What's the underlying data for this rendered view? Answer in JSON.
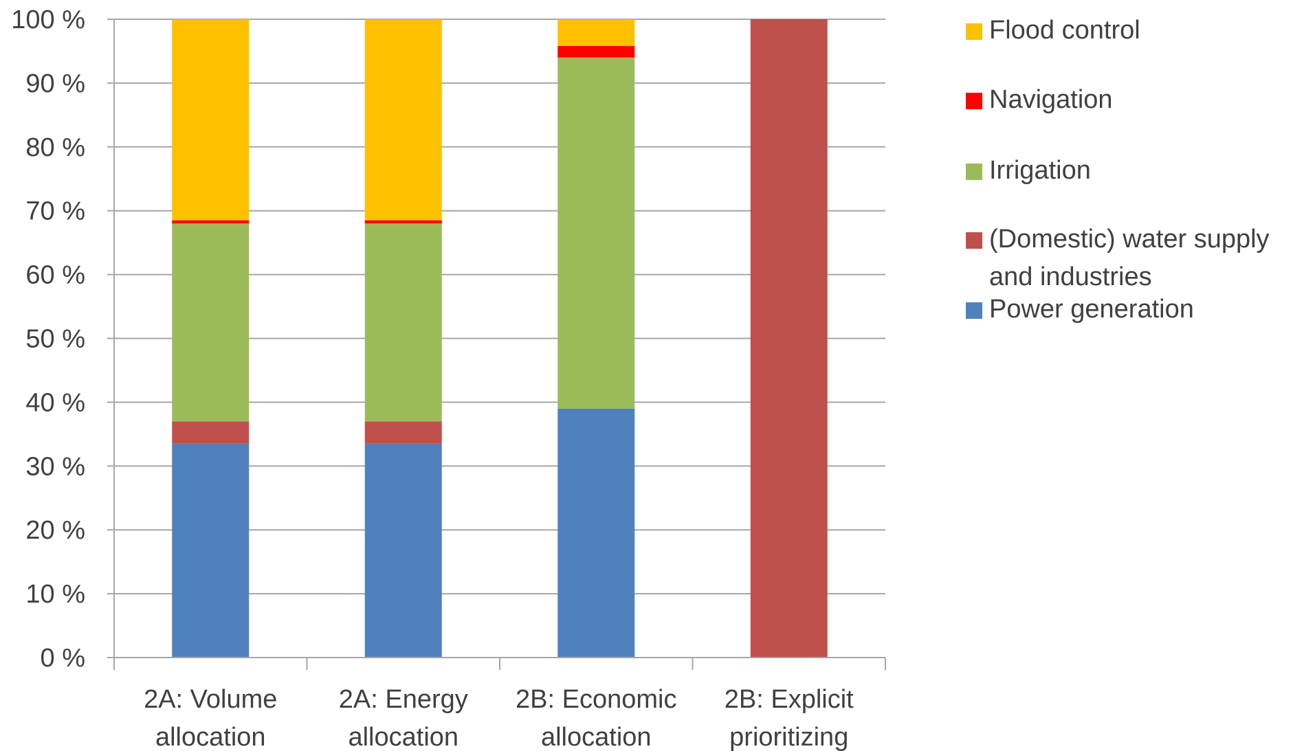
{
  "chart_data": {
    "type": "bar",
    "stacked": true,
    "orientation": "vertical",
    "title": "",
    "xlabel": "",
    "ylabel": "",
    "ylim": [
      0,
      100
    ],
    "yticks": [
      "0 %",
      "10 %",
      "20 %",
      "30 %",
      "40 %",
      "50 %",
      "60 %",
      "70 %",
      "80 %",
      "90 %",
      "100 %"
    ],
    "grid": true,
    "legend_position": "right",
    "categories": [
      [
        "2A: Volume",
        "allocation"
      ],
      [
        "2A: Energy",
        "allocation"
      ],
      [
        "2B: Economic",
        "allocation"
      ],
      [
        "2B: Explicit",
        "prioritizing"
      ]
    ],
    "series": [
      {
        "name": "Power generation",
        "color": "#4F81BD",
        "values": [
          33.5,
          33.5,
          39,
          0
        ]
      },
      {
        "name": "(Domestic) water supply and industries",
        "color": "#C0504D",
        "values": [
          3.5,
          3.5,
          0,
          100
        ]
      },
      {
        "name": "Irrigation",
        "color": "#9BBB59",
        "values": [
          31,
          31,
          55,
          0
        ]
      },
      {
        "name": "Navigation",
        "color": "#FF0000",
        "values": [
          0.5,
          0.5,
          1.8,
          0
        ]
      },
      {
        "name": "Flood control",
        "color": "#FFC000",
        "values": [
          31.5,
          31.5,
          4.2,
          0
        ]
      }
    ],
    "legend": [
      {
        "lines": [
          "Flood control"
        ],
        "color": "#FFC000"
      },
      {
        "lines": [
          "Navigation"
        ],
        "color": "#FF0000"
      },
      {
        "lines": [
          "Irrigation"
        ],
        "color": "#9BBB59"
      },
      {
        "lines": [
          "(Domestic) water supply",
          "and industries"
        ],
        "color": "#C0504D"
      },
      {
        "lines": [
          "Power generation"
        ],
        "color": "#4F81BD"
      }
    ]
  }
}
